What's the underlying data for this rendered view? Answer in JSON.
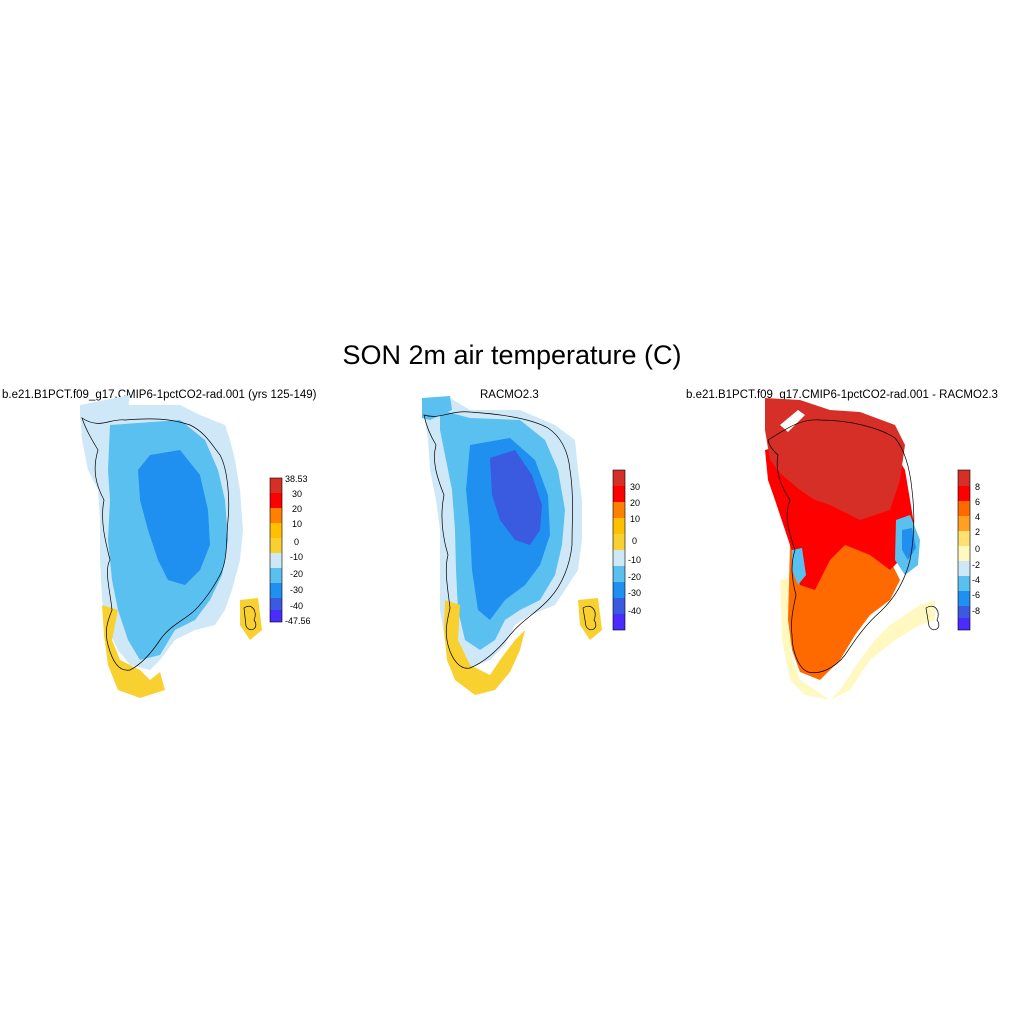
{
  "title": "SON 2m air temperature (C)",
  "panels": [
    {
      "title": "b.e21.B1PCT.f09_g17.CMIP6-1pctCO2-rad.001 (yrs 125-149)",
      "colorbar_labels": [
        "38.53",
        "30",
        "20",
        "10",
        "0",
        "-10",
        "-20",
        "-30",
        "-40",
        "-47.56"
      ],
      "colorbar_colors": [
        "#d62f27",
        "#ff0000",
        "#ff8000",
        "#ffc000",
        "#f8d030",
        "#cfe8f8",
        "#5ac0f0",
        "#2090f0",
        "#3a5ae0",
        "#4b2cff"
      ]
    },
    {
      "title": "RACMO2.3",
      "colorbar_labels": [
        "30",
        "20",
        "10",
        "0",
        "-10",
        "-20",
        "-30",
        "-40"
      ],
      "colorbar_colors": [
        "#d62f27",
        "#ff0000",
        "#ff8000",
        "#ffc000",
        "#f8d030",
        "#cfe8f8",
        "#5ac0f0",
        "#2090f0",
        "#3a5ae0",
        "#4b2cff"
      ]
    },
    {
      "title": "b.e21.B1PCT.f09_g17.CMIP6-1pctCO2-rad.001 - RACMO2.3",
      "colorbar_labels": [
        "8",
        "6",
        "4",
        "2",
        "0",
        "-2",
        "-4",
        "-6",
        "-8"
      ],
      "colorbar_colors": [
        "#d62f27",
        "#ff0000",
        "#ff6a00",
        "#ffa020",
        "#ffe070",
        "#fff8c0",
        "#cfe8f8",
        "#5ac0f0",
        "#2090f0",
        "#3a5ae0",
        "#4b2cff"
      ]
    }
  ]
}
